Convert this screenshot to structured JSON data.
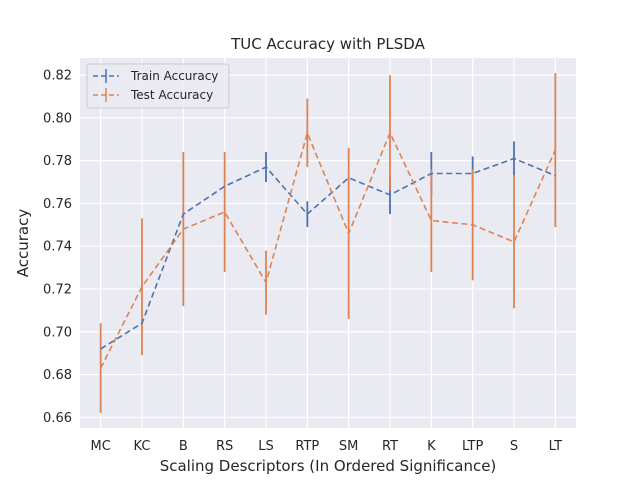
{
  "chart_data": {
    "type": "line",
    "title": "TUC Accuracy with PLSDA",
    "xlabel": "Scaling Descriptors (In Ordered Significance)",
    "ylabel": "Accuracy",
    "categories": [
      "MC",
      "KC",
      "B",
      "RS",
      "LS",
      "RTP",
      "SM",
      "RT",
      "K",
      "LTP",
      "S",
      "LT"
    ],
    "ylim": [
      0.655,
      0.828
    ],
    "yticks": [
      "0.66",
      "0.68",
      "0.70",
      "0.72",
      "0.74",
      "0.76",
      "0.78",
      "0.80",
      "0.82"
    ],
    "grid": true,
    "legend_position": "upper left",
    "series": [
      {
        "name": "Train Accuracy",
        "color": "#4c72b0",
        "linestyle": "dashed",
        "values": [
          0.692,
          0.704,
          0.755,
          0.768,
          0.777,
          0.755,
          0.772,
          0.764,
          0.774,
          0.774,
          0.781,
          0.773
        ],
        "errors": [
          0.0,
          0.0,
          0.0,
          0.0,
          0.007,
          0.006,
          0.0,
          0.009,
          0.01,
          0.008,
          0.008,
          0.0
        ]
      },
      {
        "name": "Test Accuracy",
        "color": "#dd8452",
        "linestyle": "dashed",
        "values": [
          0.683,
          0.721,
          0.748,
          0.756,
          0.723,
          0.793,
          0.746,
          0.793,
          0.752,
          0.75,
          0.742,
          0.785
        ],
        "errors": [
          0.021,
          0.032,
          0.036,
          0.028,
          0.015,
          0.016,
          0.04,
          0.027,
          0.024,
          0.026,
          0.031,
          0.036
        ]
      }
    ]
  }
}
